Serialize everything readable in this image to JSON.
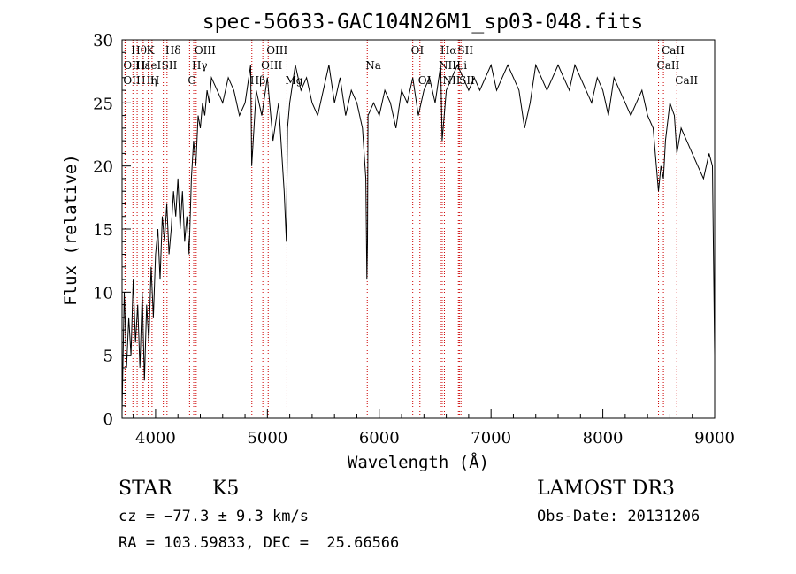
{
  "chart_data": {
    "type": "line",
    "title": "spec-56633-GAC104N26M1_sp03-048.fits",
    "xlabel": "Wavelength (Å)",
    "ylabel": "Flux (relative)",
    "xlim": [
      3700,
      9000
    ],
    "ylim": [
      0,
      30
    ],
    "xticks": [
      4000,
      5000,
      6000,
      7000,
      8000,
      9000
    ],
    "yticks": [
      0,
      5,
      10,
      15,
      20,
      25,
      30
    ],
    "grid": false,
    "line_color": "#000000",
    "marker_color": "#cc0000",
    "series": [
      {
        "x": [
          3700,
          3720,
          3740,
          3760,
          3780,
          3800,
          3820,
          3840,
          3860,
          3880,
          3900,
          3920,
          3940,
          3960,
          3980,
          4000,
          4020,
          4040,
          4060,
          4080,
          4100,
          4120,
          4140,
          4160,
          4180,
          4200,
          4220,
          4240,
          4260,
          4280,
          4300,
          4320,
          4340,
          4360,
          4380,
          4400,
          4420,
          4440,
          4460,
          4480,
          4500,
          4550,
          4600,
          4650,
          4700,
          4750,
          4800,
          4850,
          4860,
          4900,
          4950,
          5000,
          5050,
          5100,
          5150,
          5170,
          5180,
          5200,
          5250,
          5300,
          5350,
          5400,
          5450,
          5500,
          5550,
          5600,
          5650,
          5700,
          5750,
          5800,
          5850,
          5880,
          5890,
          5895,
          5900,
          5950,
          6000,
          6050,
          6100,
          6150,
          6200,
          6250,
          6300,
          6350,
          6400,
          6450,
          6500,
          6550,
          6563,
          6600,
          6650,
          6700,
          6750,
          6800,
          6850,
          6900,
          6950,
          7000,
          7050,
          7100,
          7150,
          7200,
          7250,
          7300,
          7350,
          7400,
          7450,
          7500,
          7550,
          7600,
          7650,
          7700,
          7750,
          7800,
          7850,
          7900,
          7950,
          8000,
          8050,
          8100,
          8150,
          8200,
          8250,
          8300,
          8350,
          8400,
          8450,
          8498,
          8520,
          8542,
          8560,
          8600,
          8640,
          8662,
          8700,
          8750,
          8800,
          8850,
          8900,
          8950,
          8980,
          9000
        ],
        "y": [
          0.5,
          10,
          4,
          8,
          5,
          11,
          6,
          9,
          4,
          10,
          3,
          9,
          6,
          12,
          8,
          13,
          15,
          11,
          16,
          14,
          17,
          13,
          15,
          18,
          16,
          19,
          15,
          18,
          14,
          16,
          13,
          19,
          22,
          20,
          24,
          23,
          25,
          24,
          26,
          25,
          27,
          26,
          25,
          27,
          26,
          24,
          25,
          28,
          20,
          26,
          24,
          27,
          22,
          25,
          18,
          14,
          23,
          25,
          28,
          26,
          27,
          25,
          24,
          26,
          28,
          25,
          27,
          24,
          26,
          25,
          23,
          19,
          11,
          14,
          24,
          25,
          24,
          26,
          25,
          23,
          26,
          25,
          27,
          24,
          26,
          27,
          25,
          28,
          22,
          26,
          27,
          28,
          27,
          26,
          27,
          26,
          27,
          28,
          26,
          27,
          28,
          27,
          26,
          23,
          25,
          28,
          27,
          26,
          27,
          28,
          27,
          26,
          28,
          27,
          26,
          25,
          27,
          26,
          24,
          27,
          26,
          25,
          24,
          25,
          26,
          24,
          23,
          18,
          20,
          19,
          22,
          25,
          24,
          21,
          23,
          22,
          21,
          20,
          19,
          21,
          20,
          5
        ]
      }
    ],
    "line_markers": [
      {
        "label": "Hθ",
        "x": 3797,
        "row": 1
      },
      {
        "label": "OII",
        "x": 3727,
        "row": 2
      },
      {
        "label": "Hε",
        "x": 3835,
        "row": 2
      },
      {
        "label": "OII",
        "x": 3727,
        "row": 3
      },
      {
        "label": "Hη",
        "x": 3889,
        "row": 3
      },
      {
        "label": "K",
        "x": 3934,
        "row": 1
      },
      {
        "label": "HeI",
        "x": 3889,
        "row": 2
      },
      {
        "label": "H",
        "x": 3968,
        "row": 3
      },
      {
        "label": "Hδ",
        "x": 4102,
        "row": 1
      },
      {
        "label": "SII",
        "x": 4069,
        "row": 2
      },
      {
        "label": "OIII",
        "x": 4363,
        "row": 1
      },
      {
        "label": "Hγ",
        "x": 4341,
        "row": 2
      },
      {
        "label": "G",
        "x": 4304,
        "row": 3
      },
      {
        "label": "Hβ",
        "x": 4861,
        "row": 3
      },
      {
        "label": "OIII",
        "x": 5007,
        "row": 1
      },
      {
        "label": "OIII",
        "x": 4959,
        "row": 2
      },
      {
        "label": "Mg",
        "x": 5175,
        "row": 3
      },
      {
        "label": "Na",
        "x": 5893,
        "row": 2
      },
      {
        "label": "OI",
        "x": 6300,
        "row": 1
      },
      {
        "label": "OI",
        "x": 6364,
        "row": 3
      },
      {
        "label": "Hα",
        "x": 6563,
        "row": 1
      },
      {
        "label": "SII",
        "x": 6717,
        "row": 1
      },
      {
        "label": "NII",
        "x": 6548,
        "row": 2
      },
      {
        "label": "Li",
        "x": 6708,
        "row": 2
      },
      {
        "label": "NII",
        "x": 6583,
        "row": 3
      },
      {
        "label": "SII",
        "x": 6731,
        "row": 3
      },
      {
        "label": "CaII",
        "x": 8542,
        "row": 1
      },
      {
        "label": "CaII",
        "x": 8498,
        "row": 2
      },
      {
        "label": "CaII",
        "x": 8662,
        "row": 3
      }
    ]
  },
  "info": {
    "class_label": "STAR",
    "subclass": "K5",
    "survey": "LAMOST DR3",
    "cz": "cz = −77.3 ± 9.3 km/s",
    "obs_date": "Obs-Date: 20131206",
    "coords": "RA = 103.59833, DEC =  25.66566"
  }
}
